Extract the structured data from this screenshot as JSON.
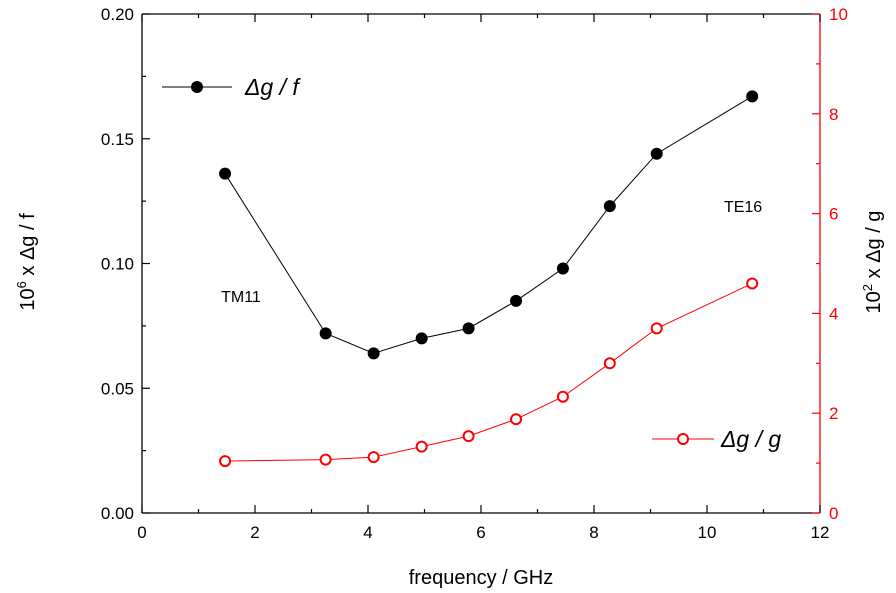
{
  "chart_data": {
    "type": "line",
    "colors": {
      "left": "#000000",
      "right": "#ff0000"
    },
    "x": [
      1.47,
      3.25,
      4.1,
      4.95,
      5.78,
      6.62,
      7.45,
      8.28,
      9.11,
      10.8
    ],
    "x_axis": {
      "label": "frequency / GHz",
      "range": [
        0,
        12
      ],
      "ticks": [
        0,
        2,
        4,
        6,
        8,
        10,
        12
      ],
      "tick_labels": [
        "0",
        "2",
        "4",
        "6",
        "8",
        "10",
        "12"
      ]
    },
    "y_left": {
      "label_prefix": "10",
      "label_exp": "6",
      "label_rest": " x Δg / f",
      "range": [
        0,
        0.2
      ],
      "ticks": [
        0,
        0.05,
        0.1,
        0.15,
        0.2
      ],
      "tick_labels": [
        "0.00",
        "0.05",
        "0.10",
        "0.15",
        "0.20"
      ]
    },
    "y_right": {
      "label_prefix": "10",
      "label_exp": "2",
      "label_rest": " x Δg / g",
      "range": [
        0,
        10
      ],
      "ticks": [
        0,
        2,
        4,
        6,
        8,
        10
      ],
      "tick_labels": [
        "0",
        "2",
        "4",
        "6",
        "8",
        "10"
      ]
    },
    "series": [
      {
        "name": "Δg / f",
        "axis": "left",
        "marker": "filled-circle",
        "values": [
          0.136,
          0.072,
          0.064,
          0.07,
          0.074,
          0.085,
          0.098,
          0.123,
          0.144,
          0.167
        ]
      },
      {
        "name": "Δg / g",
        "axis": "right",
        "marker": "open-circle",
        "values": [
          1.04,
          1.07,
          1.12,
          1.33,
          1.54,
          1.88,
          2.33,
          3.0,
          3.7,
          4.6
        ]
      }
    ],
    "annotations": [
      {
        "text": "TM11",
        "x": 1.4,
        "y_left": 0.087
      },
      {
        "text": "TE16",
        "x": 10.3,
        "y_left": 0.123
      }
    ],
    "legend": {
      "left_series": "top-left",
      "right_series": "bottom-right"
    }
  }
}
